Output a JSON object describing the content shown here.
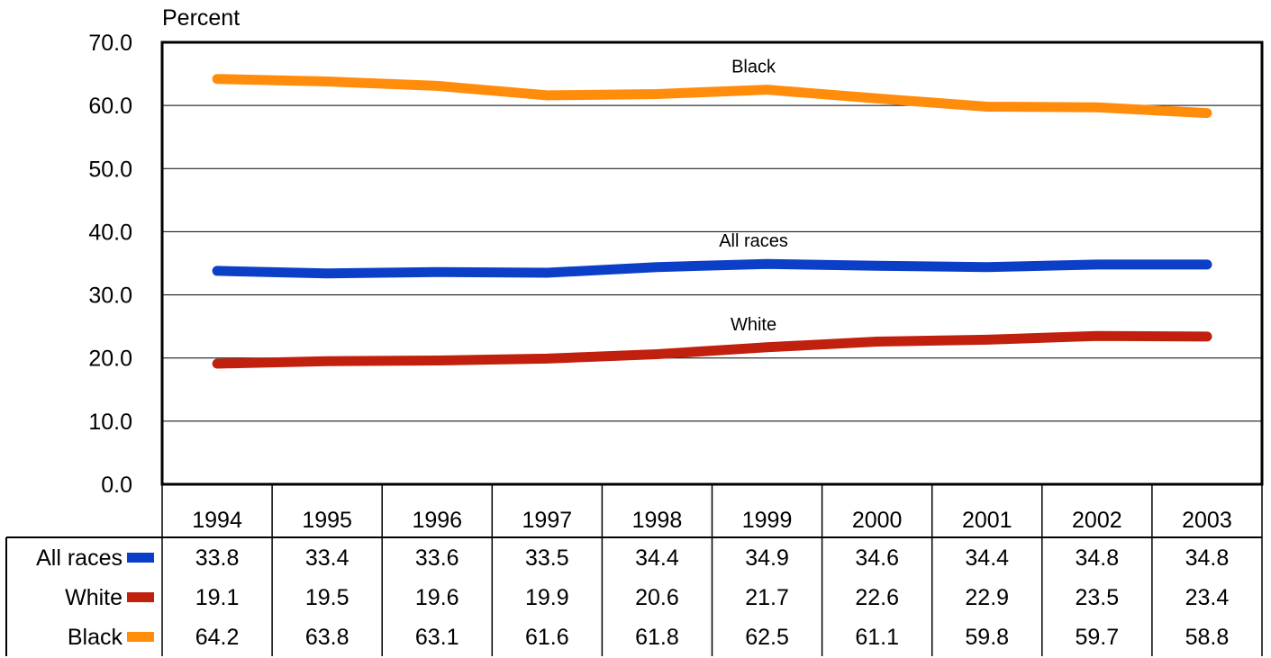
{
  "chart_data": {
    "type": "line",
    "title": "",
    "xlabel": "",
    "ylabel": "Percent",
    "ylim": [
      0,
      70
    ],
    "y_ticks": [
      "0.0",
      "10.0",
      "20.0",
      "30.0",
      "40.0",
      "50.0",
      "60.0",
      "70.0"
    ],
    "grid": true,
    "legend": "data table below plot",
    "categories": [
      "1994",
      "1995",
      "1996",
      "1997",
      "1998",
      "1999",
      "2000",
      "2001",
      "2002",
      "2003"
    ],
    "series": [
      {
        "name": "All races",
        "color": "#0b3fc7",
        "values": [
          33.8,
          33.4,
          33.6,
          33.5,
          34.4,
          34.9,
          34.6,
          34.4,
          34.8,
          34.8
        ],
        "labels": [
          "33.8",
          "33.4",
          "33.6",
          "33.5",
          "34.4",
          "34.9",
          "34.6",
          "34.4",
          "34.8",
          "34.8"
        ]
      },
      {
        "name": "White",
        "color": "#c0200d",
        "values": [
          19.1,
          19.5,
          19.6,
          19.9,
          20.6,
          21.7,
          22.6,
          22.9,
          23.5,
          23.4
        ],
        "labels": [
          "19.1",
          "19.5",
          "19.6",
          "19.9",
          "20.6",
          "21.7",
          "22.6",
          "22.9",
          "23.5",
          "23.4"
        ]
      },
      {
        "name": "Black",
        "color": "#ff8c0a",
        "values": [
          64.2,
          63.8,
          63.1,
          61.6,
          61.8,
          62.5,
          61.1,
          59.8,
          59.7,
          58.8
        ],
        "labels": [
          "64.2",
          "63.8",
          "63.1",
          "61.6",
          "61.8",
          "62.5",
          "61.1",
          "59.8",
          "59.7",
          "58.8"
        ]
      }
    ],
    "annotations": [
      {
        "text": "Black",
        "series": "Black",
        "anchor_category": "1999"
      },
      {
        "text": "All races",
        "series": "All races",
        "anchor_category": "1999"
      },
      {
        "text": "White",
        "series": "White",
        "anchor_category": "1999"
      }
    ]
  }
}
